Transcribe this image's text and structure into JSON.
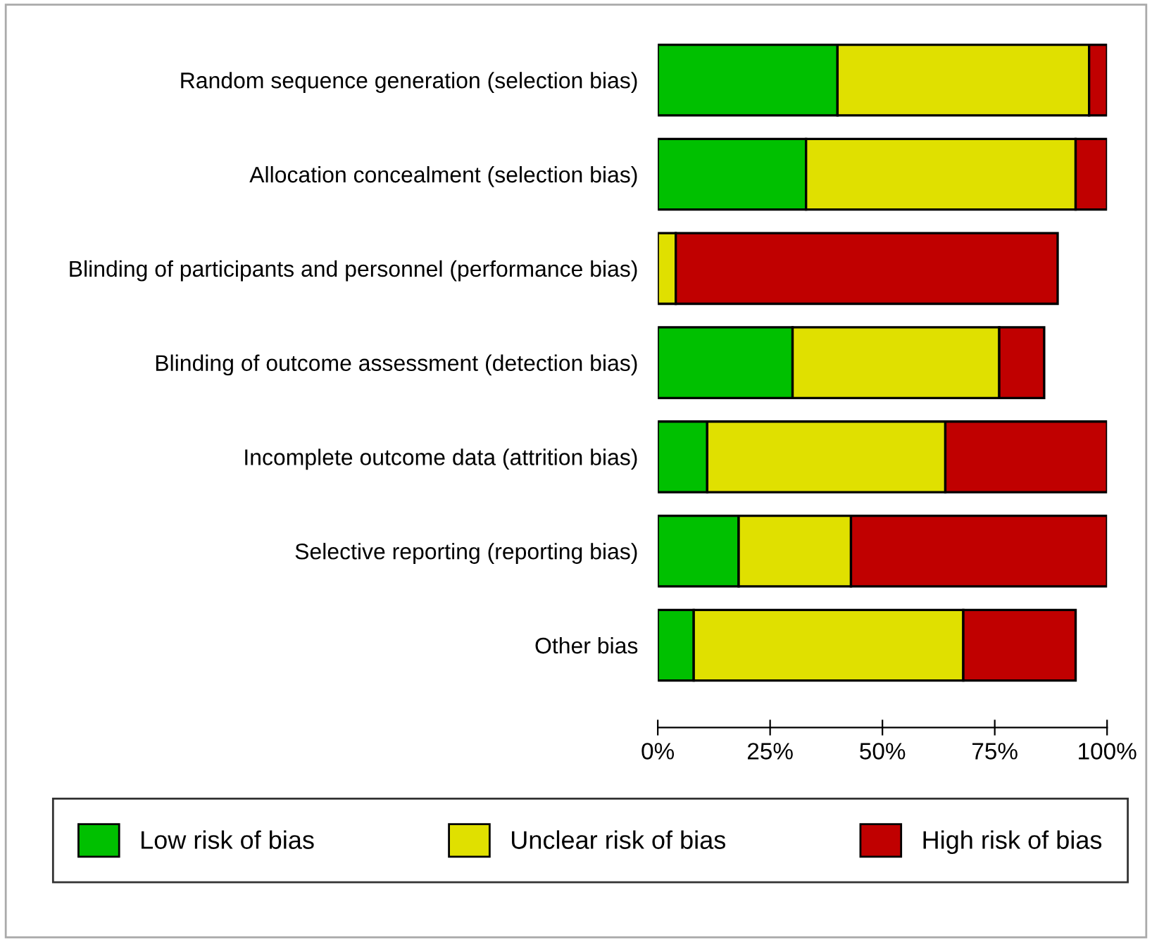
{
  "chart_data": {
    "type": "bar",
    "orientation": "horizontal",
    "stacked": true,
    "categories": [
      "Random sequence generation (selection bias)",
      "Allocation concealment (selection bias)",
      "Blinding of participants and personnel (performance bias)",
      "Blinding of outcome assessment (detection bias)",
      "Incomplete outcome data (attrition bias)",
      "Selective reporting (reporting bias)",
      "Other bias"
    ],
    "series": [
      {
        "name": "Low risk of bias",
        "color": "#00c000",
        "values": [
          40,
          33,
          0,
          30,
          11,
          18,
          8
        ]
      },
      {
        "name": "Unclear risk of bias",
        "color": "#e0e000",
        "values": [
          56,
          60,
          4,
          46,
          53,
          25,
          60
        ]
      },
      {
        "name": "High risk of bias",
        "color": "#c00000",
        "values": [
          4,
          7,
          85,
          10,
          36,
          57,
          25
        ]
      }
    ],
    "xlim": [
      0,
      100
    ],
    "xticks": [
      {
        "value": 0,
        "label": "0%"
      },
      {
        "value": 25,
        "label": "25%"
      },
      {
        "value": 50,
        "label": "50%"
      },
      {
        "value": 75,
        "label": "75%"
      },
      {
        "value": 100,
        "label": "100%"
      }
    ],
    "legend": "bottom",
    "grid": false
  }
}
